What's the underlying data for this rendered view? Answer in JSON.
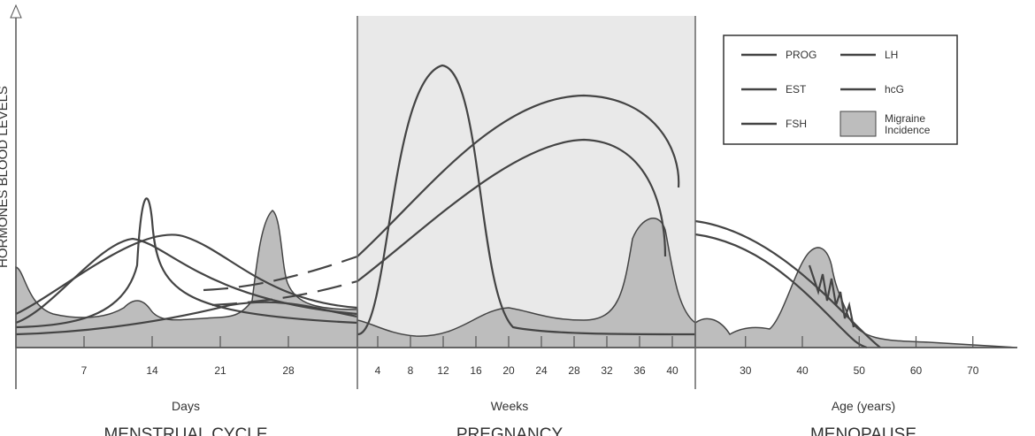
{
  "y_axis_label": "HORMONES BLOOD LEVELS",
  "panels": [
    {
      "title": "MENSTRUAL CYCLE",
      "axis_label": "Days",
      "ticks": [
        7,
        14,
        21,
        28
      ]
    },
    {
      "title": "PREGNANCY",
      "axis_label": "Weeks",
      "ticks": [
        4,
        8,
        12,
        16,
        20,
        24,
        28,
        32,
        36,
        40
      ]
    },
    {
      "title": "MENOPAUSE",
      "axis_label": "Age (years)",
      "ticks": [
        30,
        40,
        50,
        60,
        70
      ]
    }
  ],
  "legend": {
    "items": [
      {
        "label_lines": [
          "PROG"
        ]
      },
      {
        "label_lines": [
          "LH"
        ]
      },
      {
        "label_lines": [
          "EST"
        ]
      },
      {
        "label_lines": [
          "hcG"
        ]
      },
      {
        "label_lines": [
          "FSH"
        ]
      },
      {
        "label_lines": [
          "Migraine",
          "Incidence"
        ]
      }
    ]
  }
}
